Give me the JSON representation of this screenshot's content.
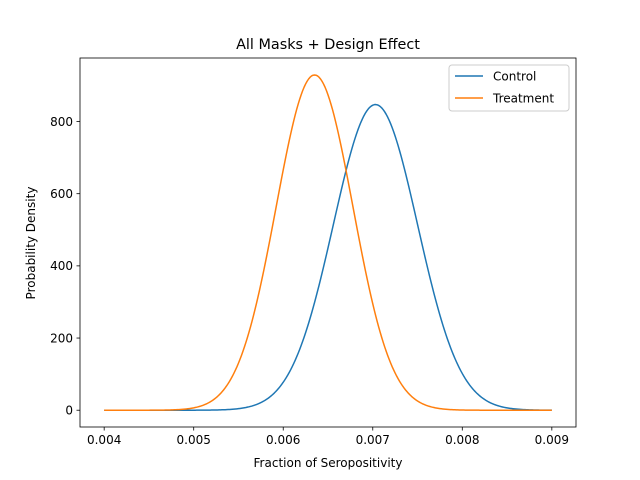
{
  "chart_data": {
    "type": "line",
    "title": "All Masks + Design Effect",
    "xlabel": "Fraction of Seropositivity",
    "ylabel": "Probability Density",
    "xlim": [
      0.00373,
      0.00927
    ],
    "ylim": [
      -46.5,
      976
    ],
    "xticks": [
      "0.004",
      "0.005",
      "0.006",
      "0.007",
      "0.008",
      "0.009"
    ],
    "yticks": [
      "0",
      "200",
      "400",
      "600",
      "800"
    ],
    "grid": false,
    "legend_position": "upper right",
    "x_range": [
      0.004,
      0.009
    ],
    "series": [
      {
        "name": "Control",
        "color": "#1f77b4",
        "distribution": "normal",
        "mean": 0.00703,
        "std": 0.000471,
        "peak_density": 847
      },
      {
        "name": "Treatment",
        "color": "#ff7f0e",
        "distribution": "normal",
        "mean": 0.00635,
        "std": 0.000429,
        "peak_density": 929
      }
    ]
  }
}
